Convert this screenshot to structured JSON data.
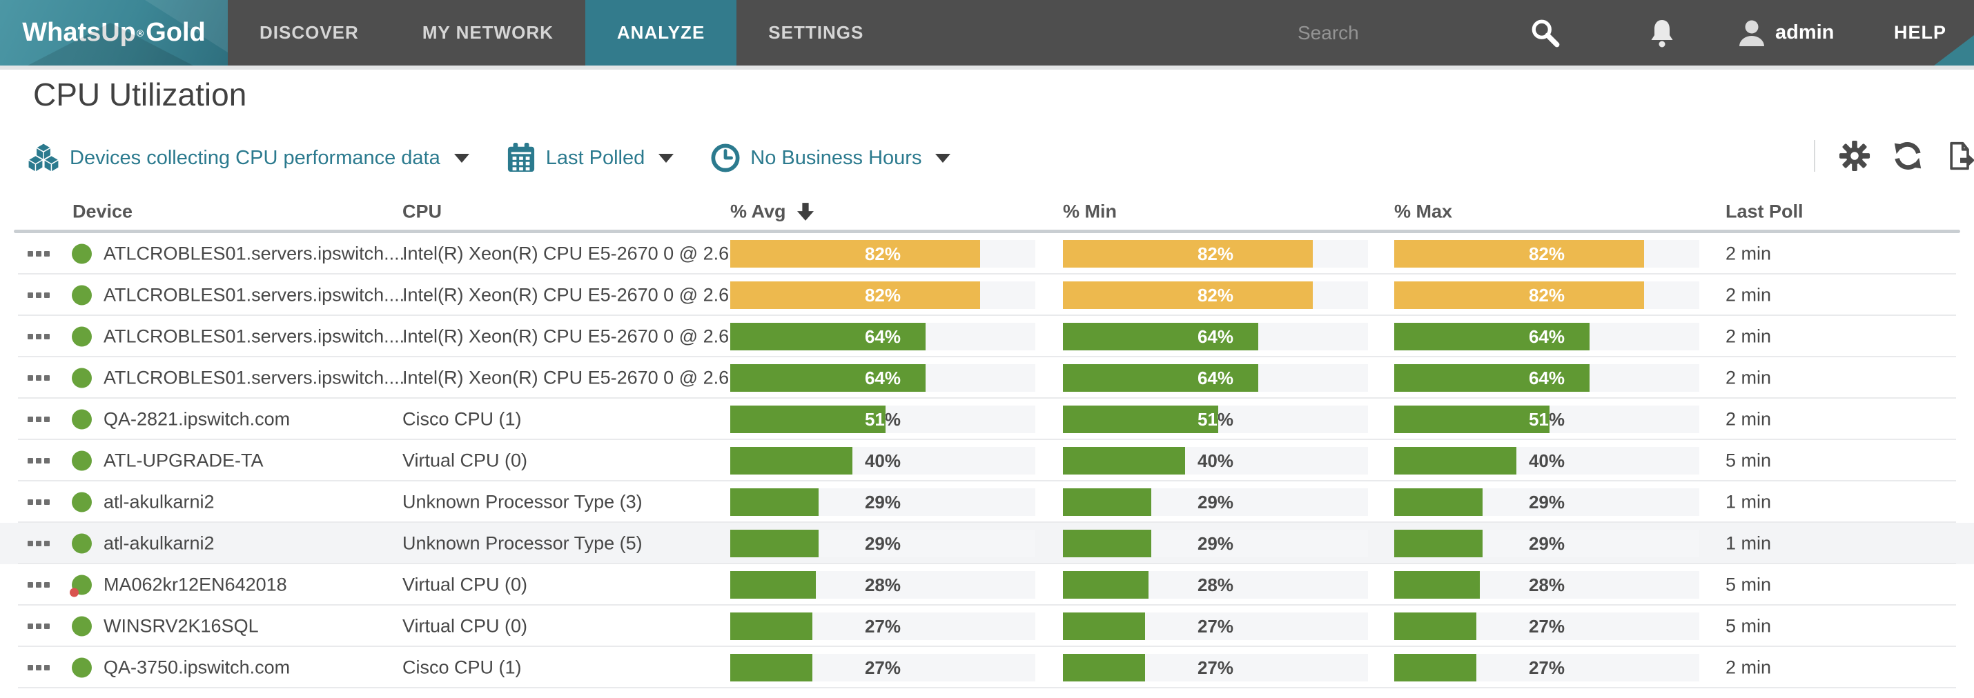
{
  "nav": {
    "brand_1": "WhatsUp",
    "brand_reg": "®",
    "brand_2": "Gold",
    "tabs": [
      {
        "label": "DISCOVER",
        "active": false
      },
      {
        "label": "MY NETWORK",
        "active": false
      },
      {
        "label": "ANALYZE",
        "active": true
      },
      {
        "label": "SETTINGS",
        "active": false
      }
    ],
    "search_placeholder": "Search",
    "username": "admin",
    "help_label": "HELP"
  },
  "page": {
    "title": "CPU Utilization"
  },
  "filters": [
    {
      "icon": "devices-icon",
      "label": "Devices collecting CPU performance data"
    },
    {
      "icon": "calendar-icon",
      "label": "Last Polled"
    },
    {
      "icon": "clock-icon",
      "label": "No Business Hours"
    }
  ],
  "toolbar": {
    "icons": [
      "settings-icon",
      "refresh-icon",
      "export-icon"
    ]
  },
  "table": {
    "columns": {
      "device": "Device",
      "cpu": "CPU",
      "avg": "% Avg",
      "min": "% Min",
      "max": "% Max",
      "last_poll": "Last Poll"
    },
    "sorted_by": "% Avg",
    "sort_direction": "desc",
    "rows": [
      {
        "device": "ATLCROBLES01.servers.ipswitch....",
        "cpu": "Intel(R) Xeon(R) CPU E5-2670 0 @ 2.6...",
        "avg": 82,
        "min": 82,
        "max": 82,
        "last_poll": "2 min",
        "status": "up",
        "highlighted": false
      },
      {
        "device": "ATLCROBLES01.servers.ipswitch....",
        "cpu": "Intel(R) Xeon(R) CPU E5-2670 0 @ 2.6...",
        "avg": 82,
        "min": 82,
        "max": 82,
        "last_poll": "2 min",
        "status": "up",
        "highlighted": false
      },
      {
        "device": "ATLCROBLES01.servers.ipswitch....",
        "cpu": "Intel(R) Xeon(R) CPU E5-2670 0 @ 2.6...",
        "avg": 64,
        "min": 64,
        "max": 64,
        "last_poll": "2 min",
        "status": "up",
        "highlighted": false
      },
      {
        "device": "ATLCROBLES01.servers.ipswitch....",
        "cpu": "Intel(R) Xeon(R) CPU E5-2670 0 @ 2.6...",
        "avg": 64,
        "min": 64,
        "max": 64,
        "last_poll": "2 min",
        "status": "up",
        "highlighted": false
      },
      {
        "device": "QA-2821.ipswitch.com",
        "cpu": "Cisco CPU (1)",
        "avg": 51,
        "min": 51,
        "max": 51,
        "last_poll": "2 min",
        "status": "up",
        "highlighted": false
      },
      {
        "device": "ATL-UPGRADE-TA",
        "cpu": "Virtual CPU (0)",
        "avg": 40,
        "min": 40,
        "max": 40,
        "last_poll": "5 min",
        "status": "up",
        "highlighted": false
      },
      {
        "device": "atl-akulkarni2",
        "cpu": "Unknown Processor Type (3)",
        "avg": 29,
        "min": 29,
        "max": 29,
        "last_poll": "1 min",
        "status": "up",
        "highlighted": false
      },
      {
        "device": "atl-akulkarni2",
        "cpu": "Unknown Processor Type (5)",
        "avg": 29,
        "min": 29,
        "max": 29,
        "last_poll": "1 min",
        "status": "up",
        "highlighted": true
      },
      {
        "device": "MA062kr12EN642018",
        "cpu": "Virtual CPU (0)",
        "avg": 28,
        "min": 28,
        "max": 28,
        "last_poll": "5 min",
        "status": "up-alert",
        "highlighted": false
      },
      {
        "device": "WINSRV2K16SQL",
        "cpu": "Virtual CPU (0)",
        "avg": 27,
        "min": 27,
        "max": 27,
        "last_poll": "5 min",
        "status": "up",
        "highlighted": false
      },
      {
        "device": "QA-3750.ipswitch.com",
        "cpu": "Cisco CPU (1)",
        "avg": 27,
        "min": 27,
        "max": 27,
        "last_poll": "2 min",
        "status": "up",
        "highlighted": false
      }
    ]
  },
  "colors": {
    "bar_warning": "#EDB94E",
    "bar_normal": "#609933",
    "warning_threshold": 80,
    "accent_teal": "#2B7A8E",
    "status_up": "#68A23B",
    "status_alert": "#D9534F",
    "active_tab": "#337B8C"
  }
}
